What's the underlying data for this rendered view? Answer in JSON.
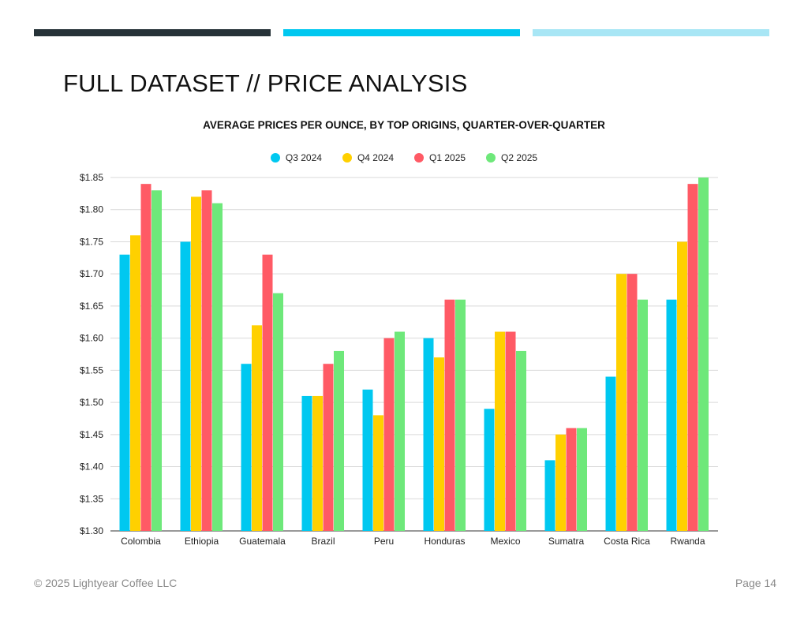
{
  "header": {
    "bar_colors": [
      "#263238",
      "#00c8f0",
      "#a8e6f5"
    ],
    "title": "FULL DATASET // PRICE ANALYSIS"
  },
  "footer": {
    "copyright": "© 2025 Lightyear Coffee LLC",
    "page": "Page 14"
  },
  "chart_data": {
    "type": "bar",
    "title": "AVERAGE PRICES PER OUNCE, BY TOP ORIGINS, QUARTER-OVER-QUARTER",
    "xlabel": "",
    "ylabel": "",
    "ylim": [
      1.3,
      1.85
    ],
    "yticks": [
      "$1.30",
      "$1.35",
      "$1.40",
      "$1.45",
      "$1.50",
      "$1.55",
      "$1.60",
      "$1.65",
      "$1.70",
      "$1.75",
      "$1.80",
      "$1.85"
    ],
    "grid": true,
    "legend_position": "top",
    "categories": [
      "Colombia",
      "Ethiopia",
      "Guatemala",
      "Brazil",
      "Peru",
      "Honduras",
      "Mexico",
      "Sumatra",
      "Costa Rica",
      "Rwanda"
    ],
    "series": [
      {
        "name": "Q3 2024",
        "color": "#00c8f0",
        "values": [
          1.73,
          1.75,
          1.56,
          1.51,
          1.52,
          1.6,
          1.49,
          1.41,
          1.54,
          1.66
        ]
      },
      {
        "name": "Q4 2024",
        "color": "#ffd000",
        "values": [
          1.76,
          1.82,
          1.62,
          1.51,
          1.48,
          1.57,
          1.61,
          1.45,
          1.7,
          1.75
        ]
      },
      {
        "name": "Q1 2025",
        "color": "#ff5a65",
        "values": [
          1.84,
          1.83,
          1.73,
          1.56,
          1.6,
          1.66,
          1.61,
          1.46,
          1.7,
          1.84
        ]
      },
      {
        "name": "Q2 2025",
        "color": "#6ee87a",
        "values": [
          1.83,
          1.81,
          1.67,
          1.58,
          1.61,
          1.66,
          1.58,
          1.46,
          1.66,
          1.85
        ]
      }
    ]
  }
}
